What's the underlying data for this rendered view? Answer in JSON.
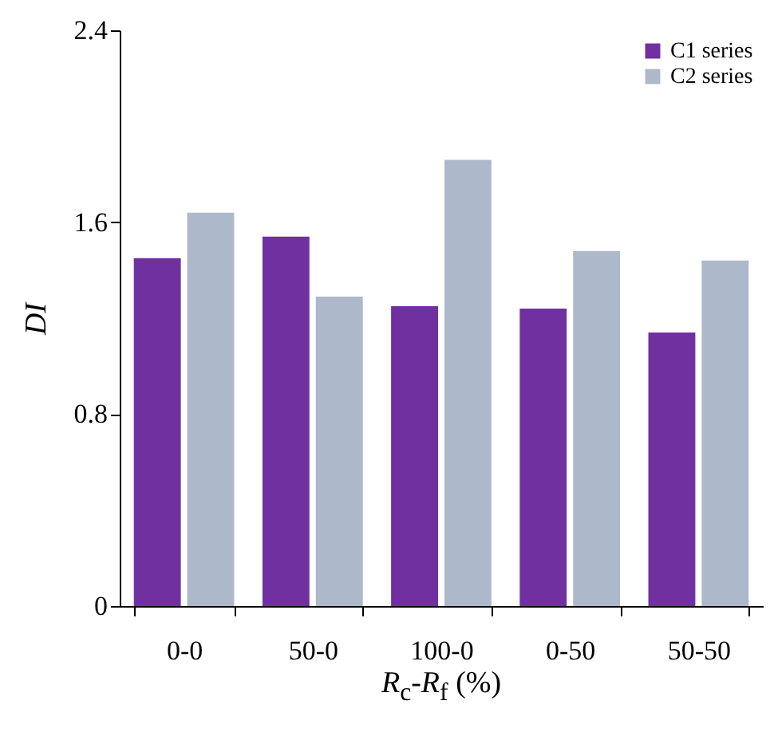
{
  "chart_data": {
    "type": "bar",
    "xlabel": "R$_{c}$-R$_{f}$ (%)",
    "ylabel": "DI",
    "categories": [
      "0-0",
      "50-0",
      "100-0",
      "0-50",
      "50-50"
    ],
    "series": [
      {
        "name": "C1 series",
        "color": "#7030a0",
        "values": [
          1.45,
          1.54,
          1.25,
          1.24,
          1.14
        ]
      },
      {
        "name": "C2 series",
        "color": "#adb9ca",
        "values": [
          1.64,
          1.29,
          1.86,
          1.48,
          1.44
        ]
      }
    ],
    "ylim": [
      0,
      2.4
    ],
    "yticks": [
      0,
      0.8,
      1.6,
      2.4
    ],
    "legend": "top right"
  }
}
